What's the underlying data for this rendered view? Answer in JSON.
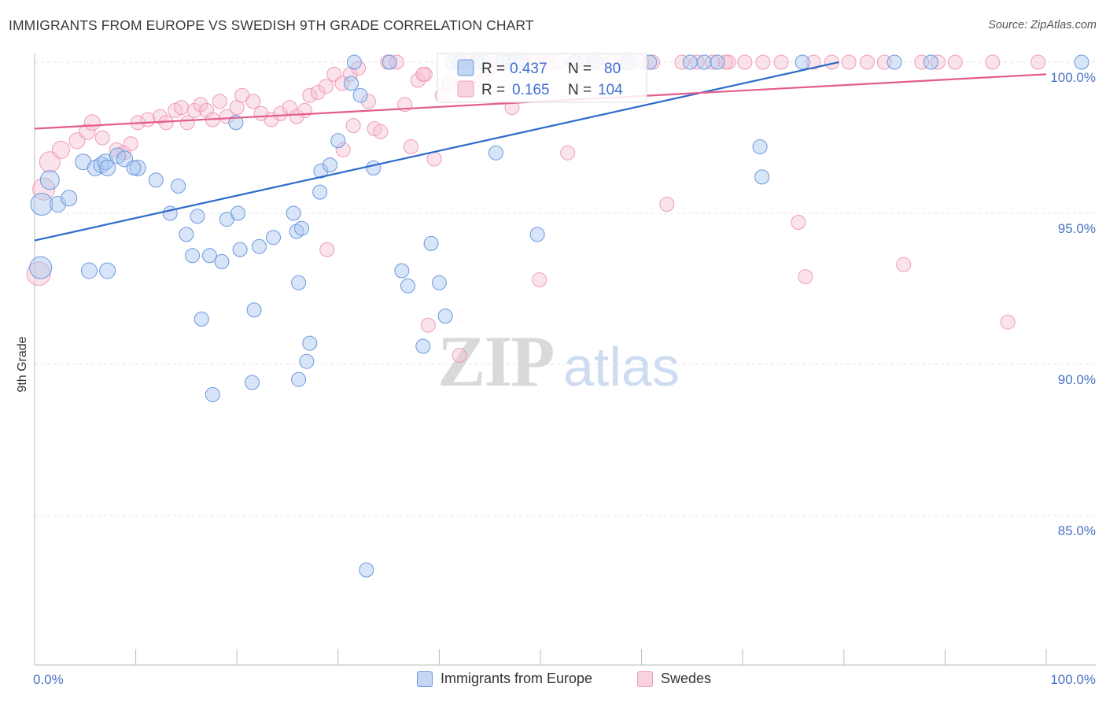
{
  "title": "IMMIGRANTS FROM EUROPE VS SWEDISH 9TH GRADE CORRELATION CHART",
  "source": "Source: ZipAtlas.com",
  "watermark": {
    "bold": "ZIP",
    "light": "atlas"
  },
  "chart_data": {
    "type": "scatter",
    "ylabel": "9th Grade",
    "xlabel": "",
    "xlim": [
      0,
      100
    ],
    "ylim": [
      80.5,
      100.3
    ],
    "x_tick_labels": {
      "left": "0.0%",
      "right": "100.0%"
    },
    "y_ticks": [
      {
        "value": 100,
        "label": "100.0%"
      },
      {
        "value": 95,
        "label": "95.0%"
      },
      {
        "value": 90,
        "label": "90.0%"
      },
      {
        "value": 85,
        "label": "85.0%"
      }
    ],
    "grid": true,
    "legend_position": "top-center",
    "series": [
      {
        "name": "Immigrants from Europe",
        "color": "#6a98dd",
        "fill": "#a9c5ef",
        "line_color": "#2c6bcc",
        "R": "0.437",
        "N": "80",
        "trend": [
          [
            0,
            94.1
          ],
          [
            79.5,
            100.0
          ]
        ],
        "points": [
          [
            0.6,
            93.2,
            14
          ],
          [
            0.7,
            95.3,
            14
          ],
          [
            1.5,
            96.1,
            12
          ],
          [
            2.3,
            95.3,
            10
          ],
          [
            3.4,
            95.5,
            10
          ],
          [
            4.8,
            96.7,
            10
          ],
          [
            6.0,
            96.5,
            10
          ],
          [
            6.6,
            96.6,
            10
          ],
          [
            7.0,
            96.7,
            10
          ],
          [
            7.2,
            96.5,
            10
          ],
          [
            8.2,
            96.9,
            10
          ],
          [
            8.9,
            96.8,
            10
          ],
          [
            10.2,
            96.5,
            10
          ],
          [
            5.4,
            93.1,
            10
          ],
          [
            7.2,
            93.1,
            10
          ],
          [
            9.8,
            96.5,
            9
          ],
          [
            12.0,
            96.1,
            9
          ],
          [
            13.4,
            95.0,
            9
          ],
          [
            14.2,
            95.9,
            9
          ],
          [
            15.0,
            94.3,
            9
          ],
          [
            15.6,
            93.6,
            9
          ],
          [
            16.1,
            94.9,
            9
          ],
          [
            17.3,
            93.6,
            9
          ],
          [
            18.5,
            93.4,
            9
          ],
          [
            19.0,
            94.8,
            9
          ],
          [
            20.1,
            95.0,
            9
          ],
          [
            19.9,
            98.0,
            9
          ],
          [
            20.3,
            93.8,
            9
          ],
          [
            22.2,
            93.9,
            9
          ],
          [
            23.6,
            94.2,
            9
          ],
          [
            16.5,
            91.5,
            9
          ],
          [
            21.7,
            91.8,
            9
          ],
          [
            17.6,
            89.0,
            9
          ],
          [
            21.5,
            89.4,
            9
          ],
          [
            25.9,
            94.4,
            9
          ],
          [
            26.4,
            94.5,
            9
          ],
          [
            25.6,
            95.0,
            9
          ],
          [
            26.1,
            92.7,
            9
          ],
          [
            27.2,
            90.7,
            9
          ],
          [
            26.9,
            90.1,
            9
          ],
          [
            26.1,
            89.5,
            9
          ],
          [
            28.2,
            95.7,
            9
          ],
          [
            28.3,
            96.4,
            9
          ],
          [
            29.2,
            96.6,
            9
          ],
          [
            30.0,
            97.4,
            9
          ],
          [
            31.3,
            99.3,
            9
          ],
          [
            31.6,
            100.0,
            9
          ],
          [
            32.2,
            98.9,
            9
          ],
          [
            33.5,
            96.5,
            9
          ],
          [
            35.1,
            100.0,
            9
          ],
          [
            36.3,
            93.1,
            9
          ],
          [
            36.9,
            92.6,
            9
          ],
          [
            38.4,
            90.6,
            9
          ],
          [
            39.2,
            94.0,
            9
          ],
          [
            40.0,
            92.7,
            9
          ],
          [
            40.6,
            91.6,
            9
          ],
          [
            41.3,
            100.0,
            9
          ],
          [
            42.1,
            100.0,
            9
          ],
          [
            43.8,
            100.0,
            9
          ],
          [
            44.4,
            100.0,
            9
          ],
          [
            46.3,
            100.0,
            9
          ],
          [
            46.9,
            100.0,
            9
          ],
          [
            47.5,
            100.0,
            9
          ],
          [
            48.2,
            100.0,
            9
          ],
          [
            45.6,
            97.0,
            9
          ],
          [
            49.7,
            94.3,
            9
          ],
          [
            53.3,
            100.0,
            9
          ],
          [
            55.4,
            100.0,
            9
          ],
          [
            58.6,
            100.0,
            9
          ],
          [
            60.8,
            100.0,
            9
          ],
          [
            64.8,
            100.0,
            9
          ],
          [
            66.2,
            100.0,
            9
          ],
          [
            67.5,
            100.0,
            9
          ],
          [
            71.7,
            97.2,
            9
          ],
          [
            71.9,
            96.2,
            9
          ],
          [
            75.9,
            100.0,
            9
          ],
          [
            85.0,
            100.0,
            9
          ],
          [
            88.6,
            100.0,
            9
          ],
          [
            103.5,
            100.0,
            9
          ],
          [
            32.8,
            83.2,
            9
          ]
        ]
      },
      {
        "name": "Swedes",
        "color": "#ee9cb8",
        "fill": "#f6c1d2",
        "line_color": "#e35c8d",
        "R": "0.165",
        "N": "104",
        "trend": [
          [
            0,
            97.8
          ],
          [
            100,
            99.6
          ]
        ],
        "points": [
          [
            0.4,
            93.0,
            15
          ],
          [
            0.9,
            95.8,
            14
          ],
          [
            1.5,
            96.7,
            13
          ],
          [
            2.6,
            97.1,
            11
          ],
          [
            4.2,
            97.4,
            10
          ],
          [
            5.2,
            97.7,
            10
          ],
          [
            5.7,
            98.0,
            10
          ],
          [
            6.7,
            97.5,
            9
          ],
          [
            8.1,
            97.1,
            9
          ],
          [
            8.8,
            97.0,
            9
          ],
          [
            9.5,
            97.3,
            9
          ],
          [
            10.2,
            98.0,
            9
          ],
          [
            11.2,
            98.1,
            9
          ],
          [
            12.4,
            98.2,
            9
          ],
          [
            13.0,
            98.0,
            9
          ],
          [
            13.9,
            98.4,
            9
          ],
          [
            14.5,
            98.5,
            9
          ],
          [
            15.1,
            98.0,
            9
          ],
          [
            15.8,
            98.4,
            9
          ],
          [
            16.4,
            98.6,
            9
          ],
          [
            17.0,
            98.4,
            9
          ],
          [
            17.6,
            98.1,
            9
          ],
          [
            18.3,
            98.7,
            9
          ],
          [
            19.0,
            98.2,
            9
          ],
          [
            20.0,
            98.5,
            9
          ],
          [
            20.5,
            98.9,
            9
          ],
          [
            21.6,
            98.7,
            9
          ],
          [
            22.4,
            98.3,
            9
          ],
          [
            23.4,
            98.1,
            9
          ],
          [
            24.3,
            98.3,
            9
          ],
          [
            25.2,
            98.5,
            9
          ],
          [
            25.9,
            98.2,
            9
          ],
          [
            26.7,
            98.4,
            9
          ],
          [
            27.2,
            98.9,
            9
          ],
          [
            28.0,
            99.0,
            9
          ],
          [
            28.8,
            99.2,
            9
          ],
          [
            29.6,
            99.6,
            9
          ],
          [
            30.4,
            99.3,
            9
          ],
          [
            31.2,
            99.6,
            9
          ],
          [
            32.0,
            99.8,
            9
          ],
          [
            33.0,
            98.7,
            9
          ],
          [
            33.6,
            97.8,
            9
          ],
          [
            34.2,
            97.7,
            9
          ],
          [
            34.9,
            100.0,
            9
          ],
          [
            35.8,
            100.0,
            9
          ],
          [
            36.6,
            98.6,
            9
          ],
          [
            37.2,
            97.2,
            9
          ],
          [
            37.9,
            99.4,
            9
          ],
          [
            38.6,
            99.6,
            9
          ],
          [
            39.5,
            96.8,
            9
          ],
          [
            40.3,
            98.9,
            9
          ],
          [
            41.0,
            99.3,
            9
          ],
          [
            41.9,
            100.0,
            9
          ],
          [
            42.8,
            100.0,
            9
          ],
          [
            43.6,
            100.0,
            9
          ],
          [
            44.3,
            99.4,
            9
          ],
          [
            45.0,
            99.8,
            9
          ],
          [
            45.7,
            100.0,
            9
          ],
          [
            46.5,
            100.0,
            9
          ],
          [
            47.2,
            98.5,
            9
          ],
          [
            47.9,
            100.0,
            9
          ],
          [
            48.6,
            100.0,
            9
          ],
          [
            49.4,
            100.0,
            9
          ],
          [
            50.2,
            100.0,
            9
          ],
          [
            51.0,
            100.0,
            9
          ],
          [
            51.8,
            100.0,
            9
          ],
          [
            52.7,
            97.0,
            9
          ],
          [
            53.5,
            100.0,
            9
          ],
          [
            54.3,
            100.0,
            9
          ],
          [
            55.1,
            100.0,
            9
          ],
          [
            56.0,
            100.0,
            9
          ],
          [
            57.0,
            100.0,
            9
          ],
          [
            58.0,
            100.0,
            9
          ],
          [
            59.0,
            100.0,
            9
          ],
          [
            60.0,
            100.0,
            9
          ],
          [
            61.1,
            100.0,
            9
          ],
          [
            62.5,
            95.3,
            9
          ],
          [
            64.0,
            100.0,
            9
          ],
          [
            65.5,
            100.0,
            9
          ],
          [
            67.0,
            100.0,
            9
          ],
          [
            68.6,
            100.0,
            9
          ],
          [
            70.2,
            100.0,
            9
          ],
          [
            72.0,
            100.0,
            9
          ],
          [
            73.8,
            100.0,
            9
          ],
          [
            75.5,
            94.7,
            9
          ],
          [
            76.2,
            92.9,
            9
          ],
          [
            77.0,
            100.0,
            9
          ],
          [
            78.8,
            100.0,
            9
          ],
          [
            80.5,
            100.0,
            9
          ],
          [
            82.3,
            100.0,
            9
          ],
          [
            84.0,
            100.0,
            9
          ],
          [
            85.9,
            93.3,
            9
          ],
          [
            87.7,
            100.0,
            9
          ],
          [
            89.3,
            100.0,
            9
          ],
          [
            91.0,
            100.0,
            9
          ],
          [
            94.7,
            100.0,
            9
          ],
          [
            96.2,
            91.4,
            9
          ],
          [
            99.2,
            100.0,
            9
          ],
          [
            28.9,
            93.8,
            9
          ],
          [
            30.5,
            97.1,
            9
          ],
          [
            31.5,
            97.9,
            9
          ],
          [
            38.4,
            99.6,
            9
          ],
          [
            38.9,
            91.3,
            9
          ],
          [
            42.0,
            90.3,
            9
          ],
          [
            49.9,
            92.8,
            9
          ],
          [
            68.3,
            100.0,
            9
          ]
        ]
      }
    ]
  }
}
